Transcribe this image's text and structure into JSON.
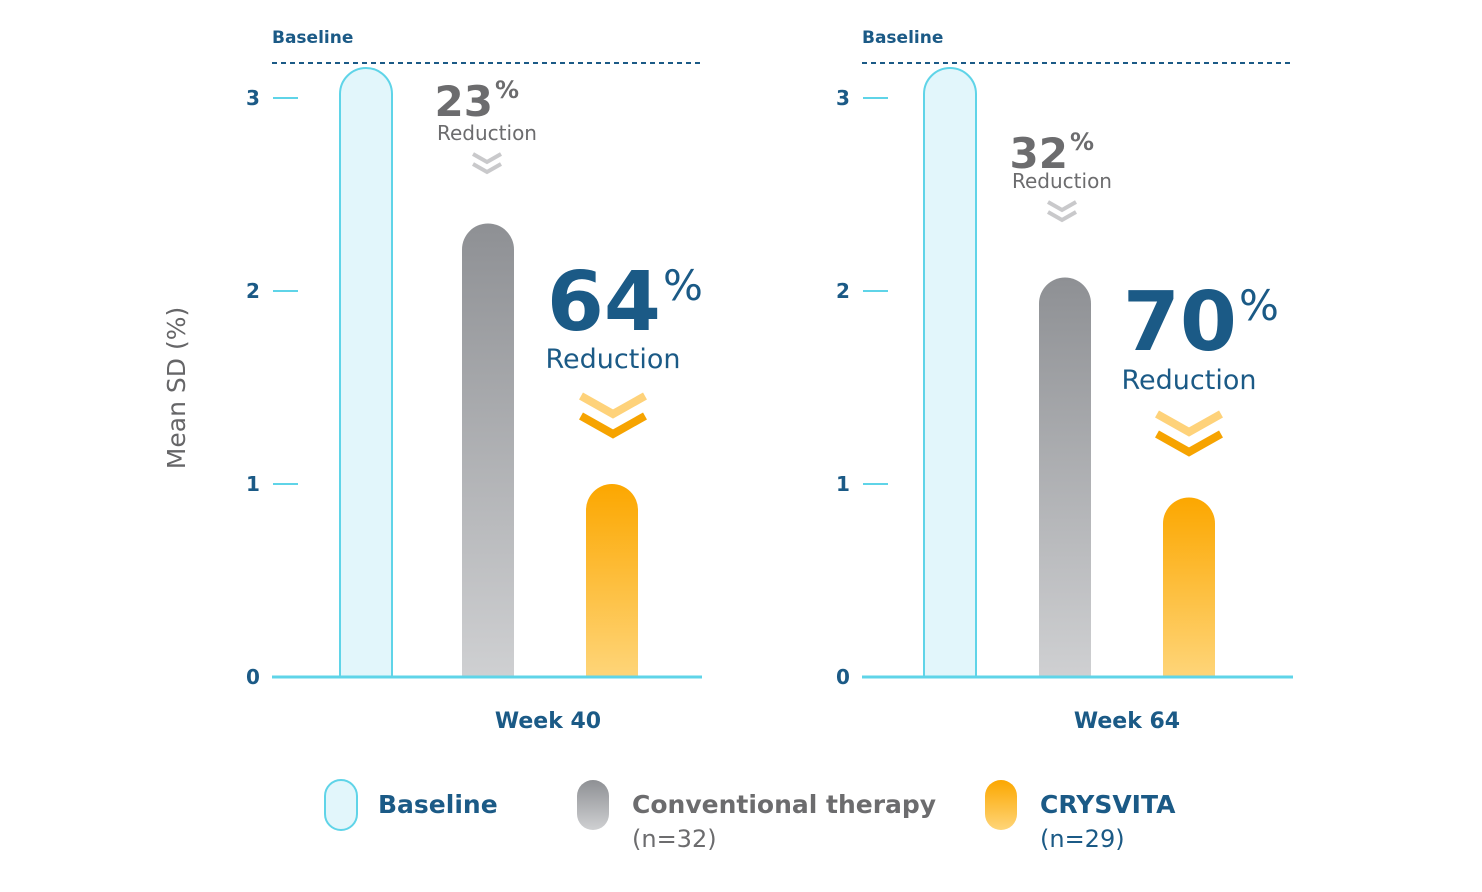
{
  "colors": {
    "navy": "#1b5a86",
    "axis": "#5fd4e8",
    "baseline_fill": "#e2f6fb",
    "baseline_stroke": "#5fd4e8",
    "conv_top": "#8e9094",
    "conv_bottom": "#cfd0d2",
    "crys_top": "#fca700",
    "crys_bottom": "#fed579",
    "gray_text": "#6c6c6e",
    "gray_chevron": "#c9c9cb",
    "orange_chevron_light": "#fed27a",
    "orange_chevron_dark": "#f6a300"
  },
  "y_axis_label": "Mean SD (%)",
  "legend": [
    {
      "key": "baseline",
      "label": "Baseline",
      "sub": ""
    },
    {
      "key": "conventional",
      "label": "Conventional therapy",
      "sub": "(n=32)"
    },
    {
      "key": "crysvita",
      "label": "CRYSVITA",
      "sub": "(n=29)"
    }
  ],
  "chart_data": [
    {
      "type": "bar",
      "panel_title": "Week 40",
      "baseline_label": "Baseline",
      "ylim": [
        0,
        3
      ],
      "yticks": [
        "0",
        "1",
        "2",
        "3"
      ],
      "series": [
        {
          "name": "Baseline",
          "value": 3.0
        },
        {
          "name": "Conventional therapy",
          "value": 2.35
        },
        {
          "name": "CRYSVITA",
          "value": 1.0
        }
      ],
      "annotations": [
        {
          "target": "Conventional therapy",
          "number": "23",
          "pct": "%",
          "text": "Reduction"
        },
        {
          "target": "CRYSVITA",
          "number": "64",
          "pct": "%",
          "text": "Reduction"
        }
      ]
    },
    {
      "type": "bar",
      "panel_title": "Week 64",
      "baseline_label": "Baseline",
      "ylim": [
        0,
        3
      ],
      "yticks": [
        "0",
        "1",
        "2",
        "3"
      ],
      "series": [
        {
          "name": "Baseline",
          "value": 3.0
        },
        {
          "name": "Conventional therapy",
          "value": 2.07
        },
        {
          "name": "CRYSVITA",
          "value": 0.93
        }
      ],
      "annotations": [
        {
          "target": "Conventional therapy",
          "number": "32",
          "pct": "%",
          "text": "Reduction"
        },
        {
          "target": "CRYSVITA",
          "number": "70",
          "pct": "%",
          "text": "Reduction"
        }
      ]
    }
  ]
}
